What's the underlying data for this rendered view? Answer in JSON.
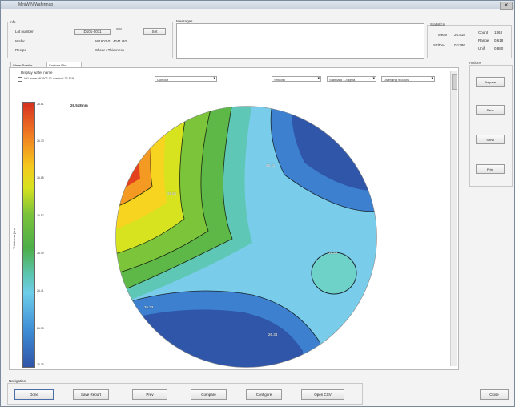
{
  "window": {
    "title": "MiniWIN Wafermap"
  },
  "info": {
    "group_label": "Info",
    "lot_label": "Lot number",
    "lot_value": "D101-0011",
    "wafer_label": "Wafer",
    "wafer_value": "W1602-01 4241 R0",
    "recipe_label": "Recipe",
    "recipe_value": "Shear / Thickness",
    "set_label": "Set",
    "set_btn": "Set",
    "messages_label": "Messages"
  },
  "stats": {
    "group_label": "Statistics",
    "rows": [
      {
        "k": "Mean",
        "v": "26.518"
      },
      {
        "k": "StdDev",
        "v": "0.1386"
      }
    ],
    "rows2": [
      {
        "k": "Count",
        "v": "1363"
      },
      {
        "k": "Range",
        "v": "0.618"
      },
      {
        "k": "Unif",
        "v": "0.880"
      }
    ]
  },
  "tabs": [
    "Wafer Scatter",
    "Contour Plot"
  ],
  "toolbar": {
    "checkbox_label": "Display wafer name",
    "file_value": "lot1 wafer W1602-01 nominal 26.518",
    "dd1": "Contour",
    "dd2": "Smooth",
    "dd3": "Standard 1-Sigma",
    "dd4": "Diverging 9 colors"
  },
  "plot": {
    "title": "26.518 nm",
    "yaxis": "Thickness [nm]",
    "ticks": [
      "26.81",
      "26.73",
      "26.65",
      "26.57",
      "26.49",
      "26.41",
      "26.33",
      "26.25"
    ],
    "contour_labels": [
      "26.41",
      "26.49",
      "26.81",
      "26.33",
      "26.34"
    ]
  },
  "right": {
    "group_label": "Actions",
    "buttons": [
      "Prepare",
      "Save",
      "Send",
      "Print"
    ]
  },
  "bottom": {
    "group_label": "Navigation",
    "buttons": [
      "Done",
      "Save Report",
      "Prev",
      "Compare",
      "Configure",
      "Open CSV"
    ],
    "close": "Close"
  }
}
